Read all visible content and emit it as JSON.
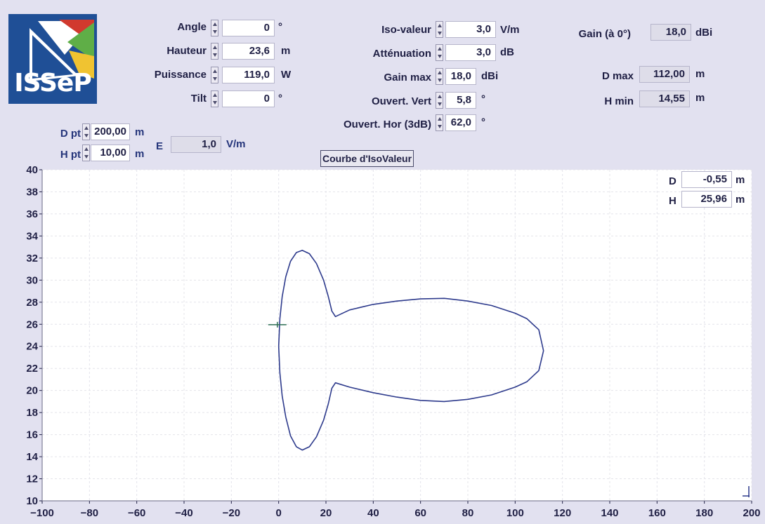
{
  "logo": {
    "text": "ISSeP"
  },
  "params_left": [
    {
      "label": "Angle",
      "value": "0",
      "unit": "°"
    },
    {
      "label": "Hauteur",
      "value": "23,6",
      "unit": "m"
    },
    {
      "label": "Puissance",
      "value": "119,0",
      "unit": "W"
    },
    {
      "label": "Tilt",
      "value": "0",
      "unit": "°"
    }
  ],
  "params_mid": [
    {
      "label": "Iso-valeur",
      "value": "3,0",
      "unit": "V/m"
    },
    {
      "label": "Atténuation",
      "value": "3,0",
      "unit": "dB"
    },
    {
      "label": "Gain max",
      "value": "18,0",
      "unit": "dBi"
    },
    {
      "label": "Ouvert. Vert",
      "value": "5,8",
      "unit": "°"
    },
    {
      "label": "Ouvert. Hor (3dB)",
      "value": "62,0",
      "unit": "°"
    }
  ],
  "results": {
    "gain": {
      "label": "Gain (à 0°)",
      "value": "18,0",
      "unit": "dBi"
    },
    "dmax": {
      "label": "D max",
      "value": "112,00",
      "unit": "m"
    },
    "hmin": {
      "label": "H min",
      "value": "14,55",
      "unit": "m"
    }
  },
  "point": {
    "dpt": {
      "label": "D pt",
      "value": "200,00",
      "unit": "m"
    },
    "hpt": {
      "label": "H pt",
      "value": "10,00",
      "unit": "m"
    },
    "e": {
      "label": "E",
      "value": "1,0",
      "unit": "V/m"
    }
  },
  "curve_button": "Courbe d'IsoValeur",
  "cursor": {
    "d": {
      "label": "D",
      "value": "-0,55",
      "unit": "m"
    },
    "h": {
      "label": "H",
      "value": "25,96",
      "unit": "m"
    }
  },
  "chart_data": {
    "type": "line",
    "xlim": [
      -100,
      200
    ],
    "ylim": [
      10,
      40
    ],
    "x_ticks": [
      -100,
      -80,
      -60,
      -40,
      -20,
      0,
      20,
      40,
      60,
      80,
      100,
      120,
      140,
      160,
      180,
      200
    ],
    "y_ticks": [
      10,
      12,
      14,
      16,
      18,
      20,
      22,
      24,
      26,
      28,
      30,
      32,
      34,
      36,
      38,
      40
    ],
    "grid": true,
    "line_color": "#2d3a8c",
    "cursor": {
      "x": -0.55,
      "y": 25.96
    },
    "series": [
      {
        "points": [
          [
            0,
            24
          ],
          [
            0.5,
            26.5
          ],
          [
            1.5,
            28.5
          ],
          [
            3,
            30.3
          ],
          [
            5,
            31.7
          ],
          [
            7.5,
            32.5
          ],
          [
            10,
            32.7
          ],
          [
            13,
            32.4
          ],
          [
            16,
            31.5
          ],
          [
            19,
            30
          ],
          [
            21,
            28.5
          ],
          [
            22.5,
            27.2
          ],
          [
            24,
            26.7
          ],
          [
            30,
            27.3
          ],
          [
            40,
            27.8
          ],
          [
            50,
            28.1
          ],
          [
            60,
            28.3
          ],
          [
            70,
            28.35
          ],
          [
            80,
            28.1
          ],
          [
            90,
            27.7
          ],
          [
            100,
            27
          ],
          [
            105,
            26.5
          ],
          [
            110,
            25.5
          ],
          [
            112,
            23.6
          ],
          [
            110,
            21.8
          ],
          [
            105,
            20.8
          ],
          [
            100,
            20.3
          ],
          [
            90,
            19.6
          ],
          [
            80,
            19.2
          ],
          [
            70,
            19
          ],
          [
            60,
            19.1
          ],
          [
            50,
            19.4
          ],
          [
            40,
            19.8
          ],
          [
            30,
            20.3
          ],
          [
            24,
            20.7
          ],
          [
            22.5,
            20.2
          ],
          [
            21,
            18.8
          ],
          [
            19,
            17.3
          ],
          [
            16,
            15.8
          ],
          [
            13,
            14.9
          ],
          [
            10,
            14.6
          ],
          [
            7.5,
            14.9
          ],
          [
            5,
            15.9
          ],
          [
            3,
            17.6
          ],
          [
            1.5,
            19.5
          ],
          [
            0.5,
            21.6
          ],
          [
            0,
            24
          ]
        ]
      }
    ]
  }
}
